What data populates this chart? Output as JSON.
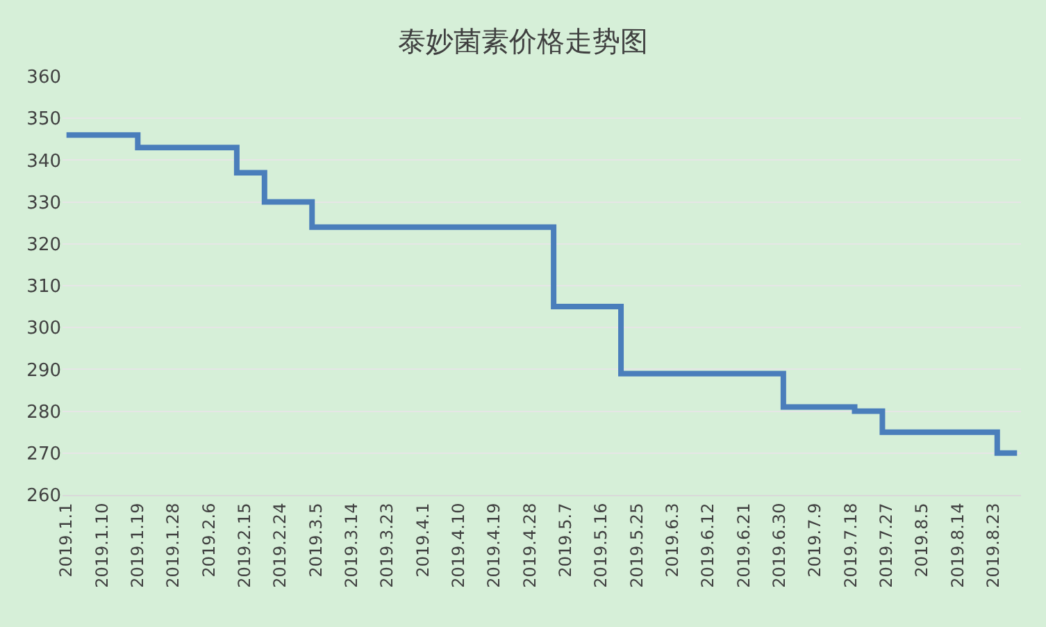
{
  "chart_data": {
    "type": "step",
    "title": "泰妙菌素价格走势图",
    "x": [
      "2019-01-01",
      "2019-01-19",
      "2019-02-13",
      "2019-02-20",
      "2019-03-04",
      "2019-05-04",
      "2019-05-21",
      "2019-07-01",
      "2019-07-19",
      "2019-07-26",
      "2019-08-24",
      "2019-08-29"
    ],
    "series": [
      {
        "color": "#4a7ebb",
        "values": [
          346,
          343,
          337,
          330,
          324,
          305,
          289,
          281,
          280,
          275,
          270,
          270
        ]
      }
    ],
    "xlim": [
      "2018-12-31",
      "2019-08-30"
    ],
    "xticks": [
      {
        "value": "2019-01-01",
        "label": "2019.1.1"
      },
      {
        "value": "2019-01-10",
        "label": "2019.1.10"
      },
      {
        "value": "2019-01-19",
        "label": "2019.1.19"
      },
      {
        "value": "2019-01-28",
        "label": "2019.1.28"
      },
      {
        "value": "2019-02-06",
        "label": "2019.2.6"
      },
      {
        "value": "2019-02-15",
        "label": "2019.2.15"
      },
      {
        "value": "2019-02-24",
        "label": "2019.2.24"
      },
      {
        "value": "2019-03-05",
        "label": "2019.3.5"
      },
      {
        "value": "2019-03-14",
        "label": "2019.3.14"
      },
      {
        "value": "2019-03-23",
        "label": "2019.3.23"
      },
      {
        "value": "2019-04-01",
        "label": "2019.4.1"
      },
      {
        "value": "2019-04-10",
        "label": "2019.4.10"
      },
      {
        "value": "2019-04-19",
        "label": "2019.4.19"
      },
      {
        "value": "2019-04-28",
        "label": "2019.4.28"
      },
      {
        "value": "2019-05-07",
        "label": "2019.5.7"
      },
      {
        "value": "2019-05-16",
        "label": "2019.5.16"
      },
      {
        "value": "2019-05-25",
        "label": "2019.5.25"
      },
      {
        "value": "2019-06-03",
        "label": "2019.6.3"
      },
      {
        "value": "2019-06-12",
        "label": "2019.6.12"
      },
      {
        "value": "2019-06-21",
        "label": "2019.6.21"
      },
      {
        "value": "2019-06-30",
        "label": "2019.6.30"
      },
      {
        "value": "2019-07-09",
        "label": "2019.7.9"
      },
      {
        "value": "2019-07-18",
        "label": "2019.7.18"
      },
      {
        "value": "2019-07-27",
        "label": "2019.7.27"
      },
      {
        "value": "2019-08-05",
        "label": "2019.8.5"
      },
      {
        "value": "2019-08-14",
        "label": "2019.8.14"
      },
      {
        "value": "2019-08-23",
        "label": "2019.8.23"
      }
    ],
    "ylim": [
      260,
      360
    ],
    "yticks": [
      260,
      270,
      280,
      290,
      300,
      310,
      320,
      330,
      340,
      350,
      360
    ],
    "grid": "y",
    "marker": "none",
    "line_style": "solid"
  }
}
